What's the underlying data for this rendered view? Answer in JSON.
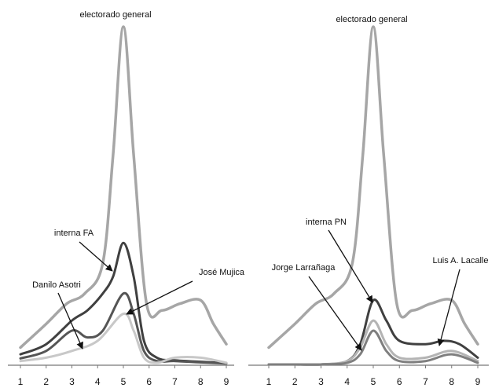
{
  "chart_data": [
    {
      "type": "line",
      "x": [
        1,
        2,
        3,
        4,
        5,
        6,
        7,
        8,
        9
      ],
      "tick_labels": [
        "1",
        "2",
        "3",
        "4",
        "5",
        "6",
        "7",
        "8",
        "9"
      ],
      "ylim": [
        0,
        1
      ],
      "grid": false,
      "series": [
        {
          "name": "electorado general",
          "color": "#a6a6a6",
          "x": [
            1,
            2,
            2.8,
            3.5,
            4.2,
            4.6,
            5.0,
            5.4,
            5.9,
            6.5,
            7.2,
            8.0,
            8.5,
            9.0
          ],
          "values": [
            0.05,
            0.12,
            0.18,
            0.21,
            0.3,
            0.62,
            1.0,
            0.62,
            0.18,
            0.16,
            0.18,
            0.19,
            0.12,
            0.06
          ]
        },
        {
          "name": "interna FA",
          "color": "#404040",
          "x": [
            1,
            2,
            3,
            3.6,
            4.2,
            4.6,
            5.0,
            5.4,
            5.8,
            6.3,
            7,
            8,
            9
          ],
          "values": [
            0.03,
            0.06,
            0.13,
            0.16,
            0.21,
            0.26,
            0.36,
            0.26,
            0.07,
            0.02,
            0.012,
            0.008,
            0.004
          ]
        },
        {
          "name": "Danilo Asotri",
          "color": "#555555",
          "x": [
            1,
            2,
            3,
            3.6,
            4.2,
            5.0,
            5.4,
            5.8,
            6.3,
            7,
            8,
            9
          ],
          "values": [
            0.018,
            0.04,
            0.1,
            0.08,
            0.1,
            0.21,
            0.15,
            0.04,
            0.01,
            0.01,
            0.006,
            0.003
          ]
        },
        {
          "name": "José Mujica",
          "color": "#c8c8c8",
          "x": [
            1,
            2,
            3,
            4,
            5.0,
            5.4,
            5.8,
            6.3,
            7,
            8,
            9
          ],
          "values": [
            0.01,
            0.02,
            0.04,
            0.07,
            0.15,
            0.1,
            0.02,
            0.005,
            0.02,
            0.02,
            0.005
          ]
        }
      ],
      "annotations": [
        {
          "text": "electorado general"
        },
        {
          "text": "interna FA"
        },
        {
          "text": "Danilo Asotri"
        },
        {
          "text": "José Mujica"
        }
      ]
    },
    {
      "type": "line",
      "x": [
        1,
        2,
        3,
        4,
        5,
        6,
        7,
        8,
        9
      ],
      "tick_labels": [
        "1",
        "2",
        "3",
        "4",
        "5",
        "6",
        "7",
        "8",
        "9"
      ],
      "ylim": [
        0,
        1
      ],
      "grid": false,
      "series": [
        {
          "name": "electorado general",
          "color": "#a6a6a6",
          "x": [
            1,
            2,
            2.8,
            3.5,
            4.2,
            4.6,
            5.0,
            5.4,
            5.9,
            6.5,
            7.2,
            8.0,
            8.5,
            9.0
          ],
          "values": [
            0.05,
            0.12,
            0.18,
            0.21,
            0.3,
            0.62,
            1.0,
            0.62,
            0.18,
            0.16,
            0.18,
            0.19,
            0.12,
            0.06
          ]
        },
        {
          "name": "interna PN",
          "color": "#404040",
          "x": [
            1,
            2,
            3,
            4,
            4.5,
            5.0,
            5.5,
            6.0,
            7.0,
            7.7,
            8.3,
            9.0
          ],
          "values": [
            0,
            0,
            0,
            0.01,
            0.06,
            0.19,
            0.13,
            0.07,
            0.06,
            0.07,
            0.06,
            0.02
          ]
        },
        {
          "name": "Jorge Larrañaga",
          "color": "#b4b4b4",
          "x": [
            1,
            2,
            3,
            4,
            4.5,
            5.0,
            5.5,
            6.0,
            7.0,
            8.0,
            9.0
          ],
          "values": [
            0,
            0,
            0,
            0.01,
            0.05,
            0.13,
            0.06,
            0.02,
            0.02,
            0.04,
            0.01
          ]
        },
        {
          "name": "Luis A. Lacalle",
          "color": "#7f7f7f",
          "x": [
            1,
            2,
            3,
            4,
            4.5,
            5.0,
            5.5,
            6.0,
            7.0,
            8.0,
            9.0
          ],
          "values": [
            0,
            0,
            0,
            0.005,
            0.03,
            0.1,
            0.04,
            0.01,
            0.01,
            0.03,
            0.005
          ]
        }
      ],
      "annotations": [
        {
          "text": "electorado general"
        },
        {
          "text": "interna PN"
        },
        {
          "text": "Jorge Larrañaga"
        },
        {
          "text": "Luis A. Lacalle"
        }
      ]
    }
  ]
}
